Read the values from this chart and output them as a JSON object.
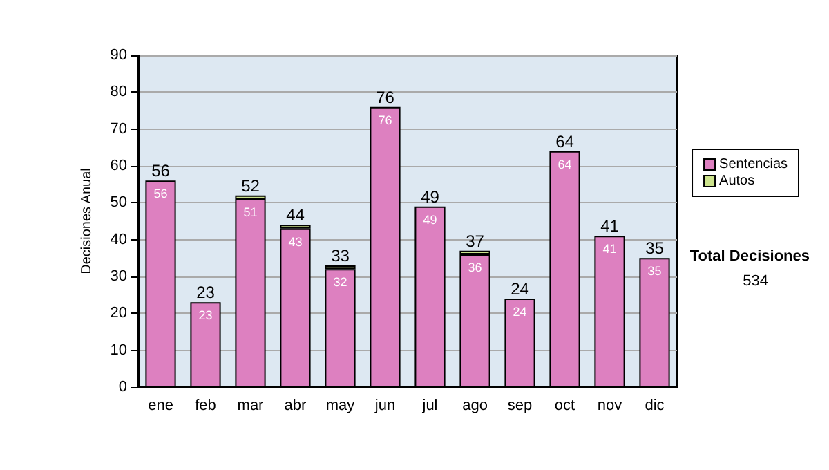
{
  "chart_data": {
    "type": "bar",
    "stacked": true,
    "ylabel": "Decisiones Anual",
    "categories": [
      "ene",
      "feb",
      "mar",
      "abr",
      "may",
      "jun",
      "jul",
      "ago",
      "sep",
      "oct",
      "nov",
      "dic"
    ],
    "series": [
      {
        "name": "Sentencias",
        "color": "#dd80c0",
        "values": [
          56,
          23,
          51,
          43,
          32,
          76,
          49,
          36,
          24,
          64,
          41,
          35
        ],
        "value_labels": [
          "56",
          "23",
          "51",
          "43",
          "32",
          "76",
          "49",
          "36",
          "24",
          "64",
          "41",
          "35"
        ]
      },
      {
        "name": "Autos",
        "color": "#cce38c",
        "values": [
          0,
          0,
          1,
          1,
          1,
          0,
          0,
          1,
          0,
          0,
          0,
          0
        ]
      }
    ],
    "totals": [
      "56",
      "23",
      "52",
      "44",
      "33",
      "76",
      "49",
      "37",
      "24",
      "64",
      "41",
      "35"
    ],
    "ylim": [
      0,
      90
    ],
    "yticks": [
      0,
      10,
      20,
      30,
      40,
      50,
      60,
      70,
      80,
      90
    ],
    "grid": "y",
    "legend": "right",
    "annotations": [
      "Total Decisiones",
      "534"
    ]
  }
}
